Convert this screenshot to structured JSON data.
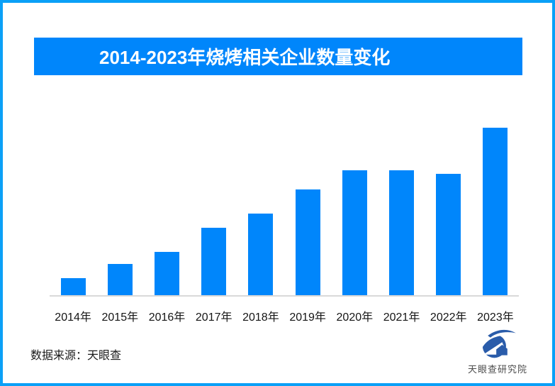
{
  "page": {
    "background": "#ffffff",
    "border_color": "#0ba0f7"
  },
  "header": {
    "title": "2014-2023年烧烤相关企业数量变化",
    "banner_color": "#0086fb",
    "title_color": "#ffffff"
  },
  "chart_data": {
    "type": "bar",
    "title": "2014-2023年烧烤相关企业数量变化",
    "categories": [
      "2014年",
      "2015年",
      "2016年",
      "2017年",
      "2018年",
      "2019年",
      "2020年",
      "2021年",
      "2022年",
      "2023年"
    ],
    "values": [
      10.2,
      18.6,
      25.8,
      40.3,
      48.7,
      63.1,
      74.6,
      74.4,
      72.5,
      100
    ],
    "value_scale": "relative height, percent of tallest bar (2023); no numeric y-axis shown in chart",
    "xlabel": "",
    "ylabel": "",
    "ylim": [
      0,
      100
    ],
    "grid": false,
    "legend": false,
    "bar_color": "#0086fb",
    "axis_line_color": "#d9d9d9"
  },
  "footer": {
    "source_label": "数据来源：天眼查",
    "logo_text": "天眼查研究院",
    "logo_color": "#2a5caa",
    "logo_text_color": "#4c4c4c"
  }
}
